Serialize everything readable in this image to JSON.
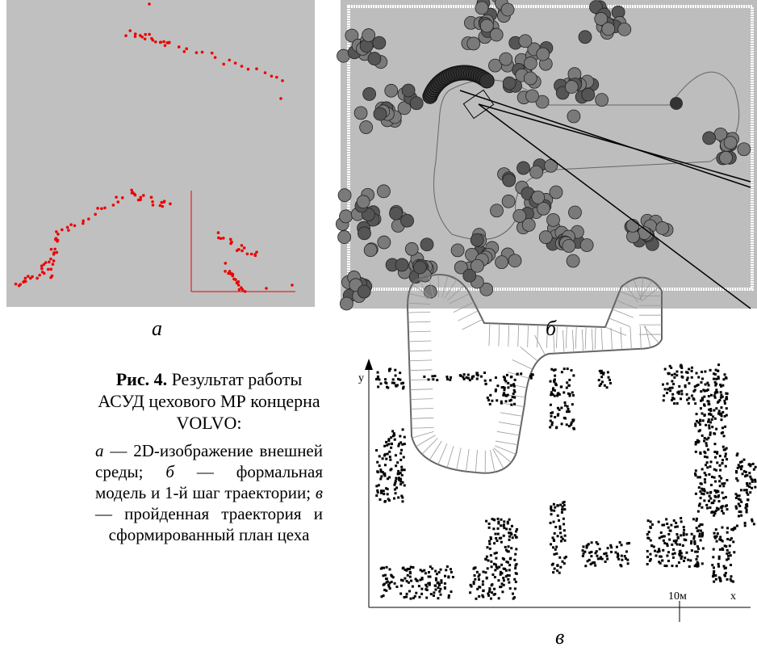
{
  "panels": {
    "a": {
      "label": "а"
    },
    "b": {
      "label": "б"
    },
    "c": {
      "label": "в",
      "y_axis_label": "y",
      "x_axis_label": "x",
      "scale_label": "10м"
    }
  },
  "caption": {
    "label": "Рис. 4.",
    "title": "Результат работы АСУД цехового МР концерна VOLVO:",
    "items": [
      {
        "letter": "а",
        "text": "— 2D-изображение внешней среды;"
      },
      {
        "letter": "б",
        "text": "— формальная модель и 1-й шаг траектории;"
      },
      {
        "letter": "в",
        "text": "— пройденная траектория и сформированный план цеха"
      }
    ]
  }
}
